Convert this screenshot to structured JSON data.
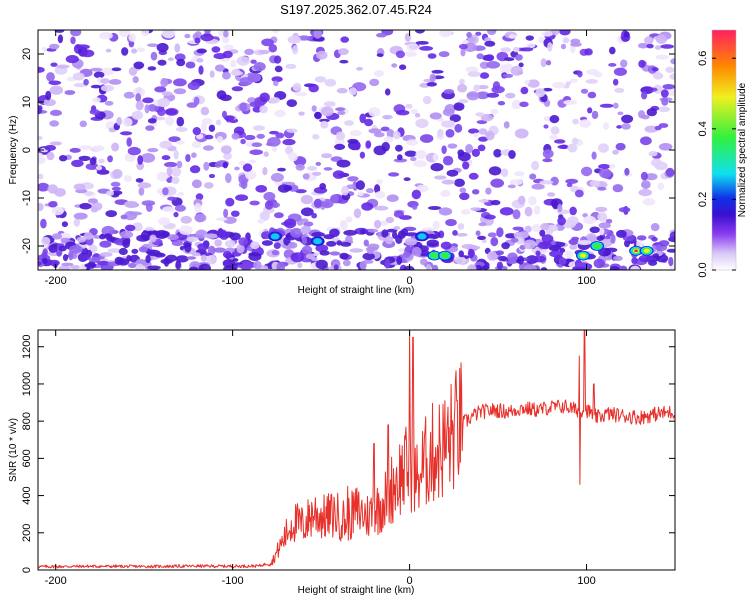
{
  "title": "S197.2025.362.07.45.R24",
  "colors": {
    "snr_line": "#e8302a",
    "spectrogram_cmap": [
      "#ffffff",
      "#d8c8f8",
      "#8a3cf0",
      "#5a18d8",
      "#1030e8",
      "#10e0f0",
      "#30f040",
      "#f0f020",
      "#ff8800",
      "#ff2060"
    ]
  },
  "chart_data": [
    {
      "type": "heatmap",
      "xlabel": "Height of straight line (km)",
      "ylabel": "Frequency (Hz)",
      "xlim": [
        -210,
        150
      ],
      "ylim": [
        -25,
        25
      ],
      "xticks": [
        -200,
        -100,
        0,
        100
      ],
      "yticks": [
        -20,
        -10,
        0,
        10,
        20
      ],
      "colorbar": {
        "label": "Normalized spectral amplitude",
        "range": [
          0,
          0.68
        ],
        "ticks": [
          0.0,
          0.2,
          0.4,
          0.6
        ],
        "tick_labels": [
          "0.0",
          "0.2",
          "0.4",
          "0.6"
        ]
      },
      "hotspots": [
        {
          "x": -76,
          "y": -18,
          "value": 0.18
        },
        {
          "x": -52,
          "y": -19,
          "value": 0.16
        },
        {
          "x": 7,
          "y": -18,
          "value": 0.2
        },
        {
          "x": 14,
          "y": -22,
          "value": 0.34
        },
        {
          "x": 20,
          "y": -22,
          "value": 0.3
        },
        {
          "x": 98,
          "y": -22,
          "value": 0.42
        },
        {
          "x": 106,
          "y": -20,
          "value": 0.3
        },
        {
          "x": 128,
          "y": -21,
          "value": 0.6
        },
        {
          "x": 134,
          "y": -21,
          "value": 0.46
        }
      ]
    },
    {
      "type": "line",
      "xlabel": "Height of straight line (km)",
      "ylabel": "SNR (10 * v/v)",
      "xlim": [
        -210,
        150
      ],
      "ylim": [
        0,
        1290
      ],
      "xticks": [
        -200,
        -100,
        0,
        100
      ],
      "yticks": [
        0,
        200,
        400,
        600,
        800,
        1000,
        1200
      ],
      "series": [
        {
          "points": [
            [
              -210,
              18
            ],
            [
              -180,
              20
            ],
            [
              -150,
              19
            ],
            [
              -120,
              21
            ],
            [
              -100,
              20
            ],
            [
              -85,
              22
            ],
            [
              -78,
              40
            ],
            [
              -72,
              150
            ],
            [
              -66,
              260
            ],
            [
              -60,
              240
            ],
            [
              -54,
              310
            ],
            [
              -48,
              280
            ],
            [
              -42,
              300
            ],
            [
              -36,
              260
            ],
            [
              -30,
              320
            ],
            [
              -24,
              290
            ],
            [
              -18,
              330
            ],
            [
              -12,
              400
            ],
            [
              -8,
              480
            ],
            [
              -4,
              520
            ],
            [
              0,
              560
            ],
            [
              4,
              480
            ],
            [
              8,
              560
            ],
            [
              12,
              620
            ],
            [
              16,
              640
            ],
            [
              20,
              670
            ],
            [
              24,
              720
            ],
            [
              28,
              780
            ],
            [
              32,
              800
            ],
            [
              36,
              830
            ],
            [
              40,
              850
            ],
            [
              48,
              860
            ],
            [
              56,
              850
            ],
            [
              64,
              870
            ],
            [
              72,
              860
            ],
            [
              80,
              875
            ],
            [
              88,
              880
            ],
            [
              94,
              860
            ],
            [
              100,
              860
            ],
            [
              106,
              820
            ],
            [
              112,
              840
            ],
            [
              120,
              830
            ],
            [
              130,
              820
            ],
            [
              140,
              840
            ],
            [
              150,
              850
            ]
          ]
        }
      ],
      "spikes": [
        {
          "x": -35,
          "y_max": 450
        },
        {
          "x": -20,
          "y_max": 680
        },
        {
          "x": -12,
          "y_max": 780
        },
        {
          "x": 0,
          "y_max": 1290,
          "y_min": 0
        },
        {
          "x": 2,
          "y_max": 1250
        },
        {
          "x": 96,
          "y_max": 1150,
          "y_min": 460
        },
        {
          "x": 99,
          "y_max": 1290
        },
        {
          "x": 104,
          "y_max": 1000
        }
      ]
    }
  ]
}
